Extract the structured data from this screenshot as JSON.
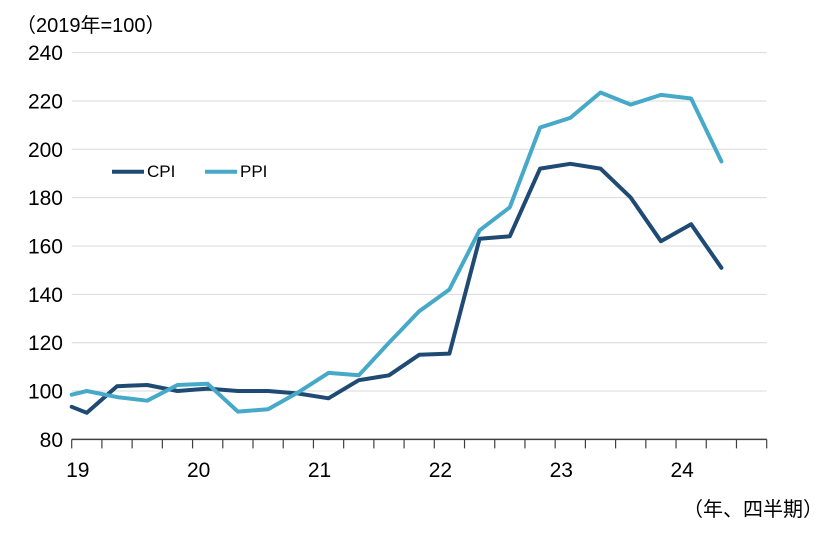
{
  "chart_data": {
    "type": "line",
    "title_note": "（2019年=100）",
    "xaxis_note": "（年、四半期）",
    "x_year_labels": [
      "19",
      "20",
      "21",
      "22",
      "23",
      "24"
    ],
    "y_ticks": [
      80,
      100,
      120,
      140,
      160,
      180,
      200,
      220,
      240
    ],
    "ylim": [
      80,
      240
    ],
    "grid": "horizontal-only",
    "legend_position": "inside-upper-left",
    "quarters": [
      "19Q1",
      "19Q2",
      "19Q3",
      "19Q4",
      "20Q1",
      "20Q2",
      "20Q3",
      "20Q4",
      "21Q1",
      "21Q2",
      "21Q3",
      "21Q4",
      "22Q1",
      "22Q2",
      "22Q3",
      "22Q4",
      "23Q1",
      "23Q2",
      "23Q3",
      "23Q4",
      "24Q1",
      "24Q2"
    ],
    "series": [
      {
        "name": "CPI",
        "color": "#1f4a73",
        "left_edge_value": 93.5,
        "values": [
          91,
          102,
          102.5,
          100,
          101,
          100,
          100,
          99,
          97,
          104.5,
          106.5,
          115,
          115.5,
          163,
          164,
          192,
          194,
          192,
          180,
          162,
          169,
          151
        ]
      },
      {
        "name": "PPI",
        "color": "#46a9c8",
        "left_edge_value": 98.5,
        "values": [
          100,
          97.5,
          96,
          102.5,
          103,
          91.5,
          92.5,
          99.5,
          107.5,
          106.5,
          120,
          133,
          142,
          166.5,
          176,
          209,
          213,
          223.5,
          218.5,
          222.5,
          221,
          195
        ]
      }
    ],
    "colors": {
      "gridline": "#d9d9d9",
      "axis": "#404040",
      "text": "#000000"
    }
  }
}
